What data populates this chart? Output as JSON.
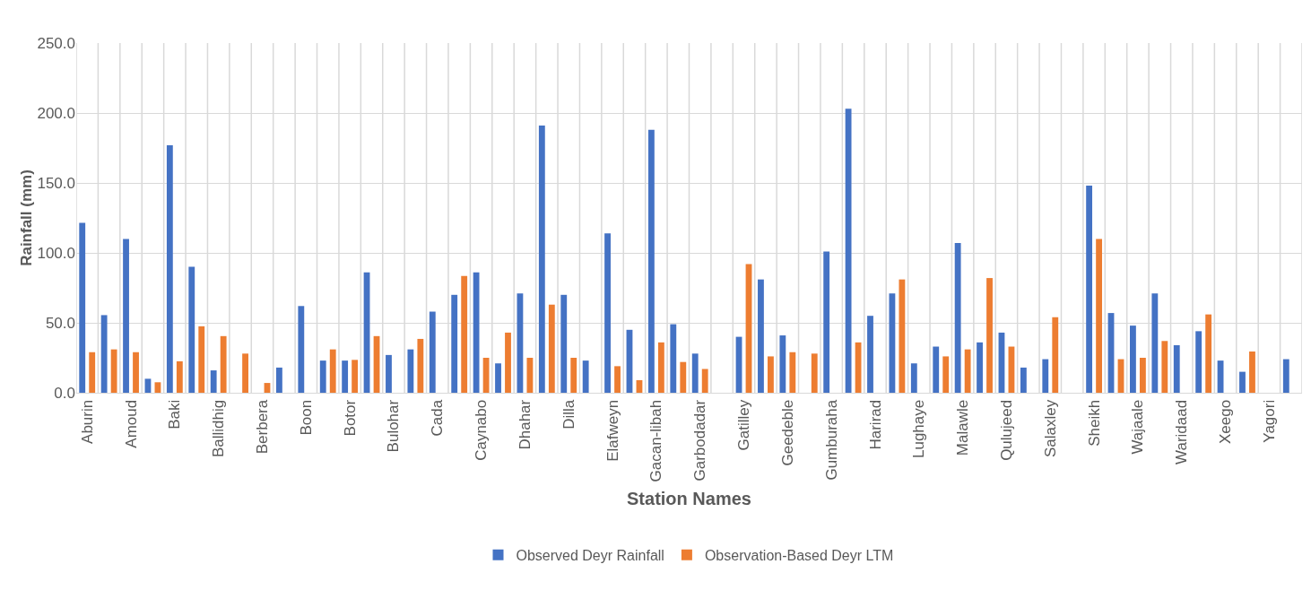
{
  "chart_data": {
    "type": "bar",
    "xlabel": "Station Names",
    "ylabel": "Rainfall (mm)",
    "categories": [
      "Aburin",
      null,
      "Amoud",
      null,
      "Baki",
      null,
      "Ballidhig",
      null,
      "Berbera",
      null,
      "Boon",
      null,
      "Botor",
      null,
      "Bulohar",
      null,
      "Cada",
      null,
      "Caynabo",
      null,
      "Dhahar",
      null,
      "Dilla",
      null,
      "Elafweyn",
      null,
      "Gacan-libah",
      null,
      "Garbodadar",
      null,
      "Gatilley",
      null,
      "Geedeble",
      null,
      "Gumburaha",
      null,
      "Harirad",
      null,
      "Lughaye",
      null,
      "Malawle",
      null,
      "Qulujeed",
      null,
      "Salaxley",
      null,
      "Sheikh",
      null,
      "Wajaale",
      null,
      "Waridaad",
      null,
      "Xeego",
      null,
      "Yagori",
      null
    ],
    "series": [
      {
        "name": "Observed Deyr Rainfall",
        "color": "#4472c4",
        "values": [
          121.5,
          55.5,
          110,
          10,
          177,
          90,
          16,
          null,
          null,
          18,
          62,
          23,
          23,
          86,
          27,
          31,
          58,
          70,
          86,
          21,
          71,
          191,
          70,
          23,
          114,
          45,
          188,
          49,
          28,
          null,
          40,
          81,
          41,
          null,
          101,
          203,
          55,
          71,
          21,
          33,
          107,
          36,
          43,
          18,
          24,
          null,
          148,
          57,
          48,
          71,
          34,
          44,
          23,
          15,
          null,
          24
        ]
      },
      {
        "name": "Observation-Based Deyr LTM",
        "color": "#ed7d31",
        "values": [
          29,
          31,
          29,
          7.5,
          22.5,
          47.5,
          40.5,
          28,
          7,
          null,
          null,
          31,
          23.5,
          40.5,
          null,
          38.5,
          null,
          83.5,
          25,
          43,
          25,
          63,
          25,
          null,
          19,
          9,
          36,
          22,
          17,
          null,
          92,
          26,
          29,
          28,
          null,
          36,
          null,
          81,
          null,
          26,
          31,
          82,
          33,
          null,
          54,
          null,
          110,
          24,
          25,
          37,
          null,
          56,
          null,
          29.5,
          null,
          null
        ]
      }
    ],
    "ylim": [
      0,
      250
    ],
    "yticks": [
      {
        "value": 0,
        "label": "0.0"
      },
      {
        "value": 50,
        "label": "50.0"
      },
      {
        "value": 100,
        "label": "100.0"
      },
      {
        "value": 150,
        "label": "150.0"
      },
      {
        "value": 200,
        "label": "200.0"
      },
      {
        "value": 250,
        "label": "250.0"
      }
    ],
    "grid": true,
    "legend": "bottom"
  }
}
